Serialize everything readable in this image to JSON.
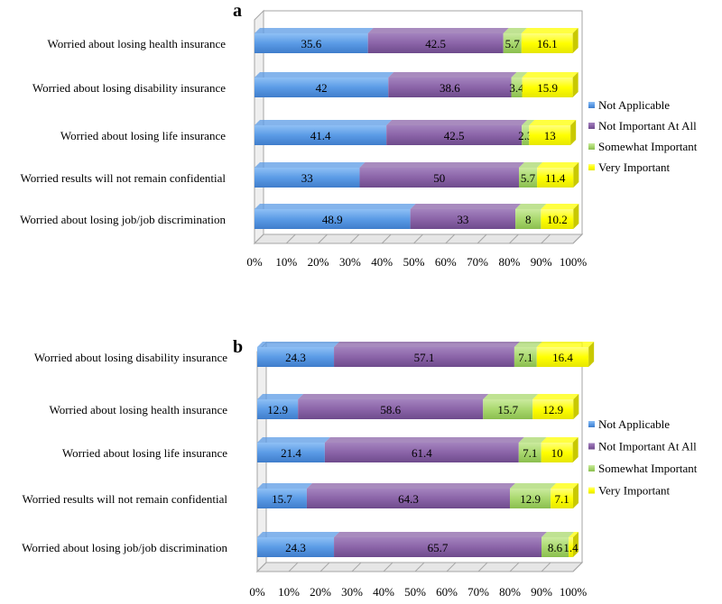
{
  "chart_data": [
    {
      "type": "bar",
      "stacked": true,
      "orientation": "horizontal",
      "panel_label": "a",
      "categories": [
        "Worried about losing health insurance",
        "Worried about losing disability insurance",
        "Worried about losing life insurance",
        "Worried results will not remain confidential",
        "Worried about losing job/job discrimination"
      ],
      "series": [
        {
          "name": "Not Applicable",
          "color": "#5B9BE6",
          "values": [
            35.6,
            42,
            41.4,
            33,
            48.9
          ]
        },
        {
          "name": "Not Important At All",
          "color": "#8B64A8",
          "values": [
            42.5,
            38.6,
            42.5,
            50,
            33
          ]
        },
        {
          "name": "Somewhat Important",
          "color": "#A9D86E",
          "values": [
            5.7,
            3.4,
            2.3,
            5.7,
            8
          ]
        },
        {
          "name": "Very Important",
          "color": "#FFFF00",
          "values": [
            16.1,
            15.9,
            13,
            11.4,
            10.2
          ]
        }
      ],
      "x_ticks": [
        "0%",
        "10%",
        "20%",
        "30%",
        "40%",
        "50%",
        "60%",
        "70%",
        "80%",
        "90%",
        "100%"
      ],
      "xlim": [
        0,
        100
      ],
      "legend_position": "right"
    },
    {
      "type": "bar",
      "stacked": true,
      "orientation": "horizontal",
      "panel_label": "b",
      "categories": [
        "Worried about losing disability insurance",
        "Worried about losing health insurance",
        "Worried about losing life insurance",
        "Worried results will not remain confidential",
        "Worried about losing job/job discrimination"
      ],
      "series": [
        {
          "name": "Not Applicable",
          "color": "#5B9BE6",
          "values": [
            24.3,
            12.9,
            21.4,
            15.7,
            24.3
          ]
        },
        {
          "name": "Not Important At All",
          "color": "#8B64A8",
          "values": [
            57.1,
            58.6,
            61.4,
            64.3,
            65.7
          ]
        },
        {
          "name": "Somewhat Important",
          "color": "#A9D86E",
          "values": [
            7.1,
            15.7,
            7.1,
            12.9,
            8.6
          ]
        },
        {
          "name": "Very Important",
          "color": "#FFFF00",
          "values": [
            16.4,
            12.9,
            10,
            7.1,
            1.4
          ]
        }
      ],
      "x_ticks": [
        "0%",
        "10%",
        "20%",
        "30%",
        "40%",
        "50%",
        "60%",
        "70%",
        "80%",
        "90%",
        "100%"
      ],
      "xlim": [
        0,
        100
      ],
      "legend_position": "right"
    }
  ]
}
